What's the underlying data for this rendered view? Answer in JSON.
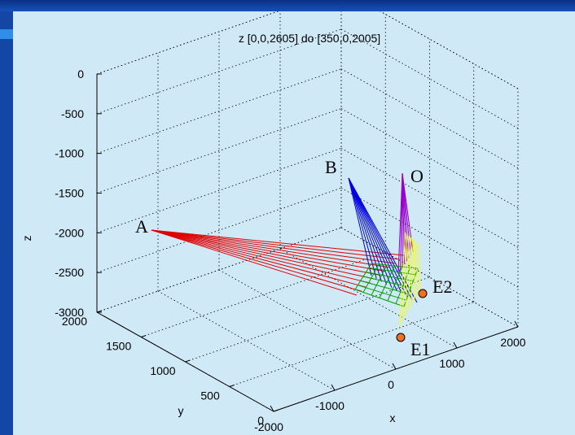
{
  "chart_data": {
    "type": "line",
    "projection": "3d",
    "title": "z [0,0,2605] do [350,0,2005]",
    "xlabel": "x",
    "ylabel": "y",
    "zlabel": "z",
    "xlim": [
      -2000,
      2000
    ],
    "ylim": [
      0,
      2000
    ],
    "zlim": [
      -3000,
      0
    ],
    "x_ticks": [
      "-2000",
      "-1000",
      "0",
      "1000",
      "2000"
    ],
    "y_ticks": [
      "0",
      "500",
      "1000",
      "1500",
      "2000"
    ],
    "z_ticks": [
      "0",
      "-500",
      "-1000",
      "-1500",
      "-2000",
      "-2500",
      "-3000"
    ],
    "grid": true,
    "colors": {
      "background": "#cfe9f7",
      "frame": "#1446a6",
      "bundle_A": "#e00000",
      "bundle_B": "#0000e0",
      "bundle_O": "#9900cc",
      "target_green": "#00a000",
      "target_yellow": "#ffff00",
      "markers": "#f07020"
    },
    "labels": [
      {
        "text": "A",
        "key": "A"
      },
      {
        "text": "B",
        "key": "B"
      },
      {
        "text": "O",
        "key": "O"
      },
      {
        "text": "E2",
        "key": "E2"
      },
      {
        "text": "E1",
        "key": "E1"
      }
    ],
    "markers": [
      "E1",
      "E2"
    ]
  }
}
